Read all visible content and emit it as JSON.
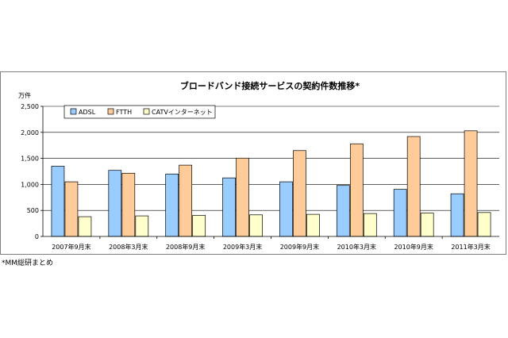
{
  "footnote": "*MM総研まとめ",
  "chart_data": {
    "type": "bar",
    "title": "ブロードバンド接続サービスの契約件数推移*",
    "ylabel": "万件",
    "xlabel": "",
    "ylim": [
      0,
      2500
    ],
    "yticks": [
      "0",
      "500",
      "1,000",
      "1,500",
      "2,000",
      "2,500"
    ],
    "ytick_values": [
      0,
      500,
      1000,
      1500,
      2000,
      2500
    ],
    "grid": true,
    "legend_position": "top-left",
    "categories": [
      "2007年9月末",
      "2008年3月末",
      "2008年9月末",
      "2009年3月末",
      "2009年9月末",
      "2010年3月末",
      "2010年9月末",
      "2011年3月末"
    ],
    "series": [
      {
        "name": "ADSL",
        "color": "#99ccff",
        "values": [
          1350,
          1270,
          1200,
          1125,
          1050,
          980,
          905,
          820
        ]
      },
      {
        "name": "FTTH",
        "color": "#ffcc99",
        "values": [
          1050,
          1215,
          1370,
          1505,
          1650,
          1780,
          1920,
          2030
        ]
      },
      {
        "name": "CATVインターネット",
        "color": "#ffffcc",
        "values": [
          380,
          395,
          405,
          415,
          425,
          440,
          450,
          460
        ]
      }
    ]
  }
}
